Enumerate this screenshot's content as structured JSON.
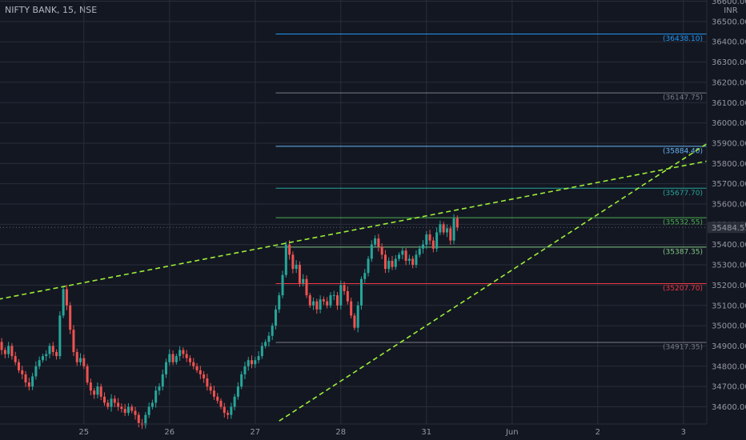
{
  "header": {
    "title": "NIFTY BANK, 15, NSE"
  },
  "axis": {
    "currency": "INR"
  },
  "colors": {
    "background": "#131722",
    "grid": "#2a2e39",
    "up": "#26a69a",
    "down": "#ef5350",
    "trendline": "#9dee38",
    "axis_text": "#9598a1"
  },
  "chart_data": {
    "type": "candlestick",
    "title": "NIFTY BANK, 15, NSE",
    "ylabel": "INR",
    "ylim": [
      34490,
      36650
    ],
    "y_ticks": [
      34600,
      34700,
      34800,
      34900,
      35000,
      35100,
      35200,
      35300,
      35400,
      35500,
      35600,
      35700,
      35800,
      35900,
      36000,
      36100,
      36200,
      36300,
      36400,
      36500,
      36600
    ],
    "y_tick_labels": [
      "34600.00",
      "34700.00",
      "34800.00",
      "34900.00",
      "35000.00",
      "35100.00",
      "35200.00",
      "35300.00",
      "35400.00",
      "35500.00",
      "35600.00",
      "35700.00",
      "35800.00",
      "35900.00",
      "36000.00",
      "36100.00",
      "36200.00",
      "36300.00",
      "36400.00",
      "36500.00",
      "36600.00"
    ],
    "x_ticks": [
      {
        "bar": 25,
        "label": "25"
      },
      {
        "bar": 50,
        "label": "26"
      },
      {
        "bar": 75,
        "label": "27"
      },
      {
        "bar": 100,
        "label": "28"
      },
      {
        "bar": 125,
        "label": "31"
      },
      {
        "bar": 150,
        "label": "Jun"
      },
      {
        "bar": 175,
        "label": "2"
      },
      {
        "bar": 200,
        "label": "3"
      }
    ],
    "last_price": 35484.55,
    "last_price_label": "35484.55",
    "levels": [
      {
        "value": 36438.1,
        "label": "(36438.10)",
        "color": "#2196f3",
        "start_bar": 81
      },
      {
        "value": 36147.75,
        "label": "(36147.75)",
        "color": "#787b86",
        "start_bar": 81
      },
      {
        "value": 35884.4,
        "label": "(35884.40)",
        "color": "#64b5f6",
        "start_bar": 81
      },
      {
        "value": 35677.7,
        "label": "(35677.70)",
        "color": "#26a69a",
        "start_bar": 81
      },
      {
        "value": 35532.55,
        "label": "(35532.55)",
        "color": "#4caf50",
        "start_bar": 81
      },
      {
        "value": 35387.35,
        "label": "(35387.35)",
        "color": "#81c784",
        "start_bar": 81
      },
      {
        "value": 35207.7,
        "label": "(35207.70)",
        "color": "#f23645",
        "start_bar": 81
      },
      {
        "value": 34917.35,
        "label": "(34917.35)",
        "color": "#787b86",
        "start_bar": 81
      }
    ],
    "trendlines": [
      {
        "name": "",
        "from": {
          "bar": 0,
          "value": 35130
        },
        "to": {
          "bar": 208,
          "value": 35815
        }
      },
      {
        "name": "",
        "from": {
          "bar": 82,
          "value": 34530
        },
        "to": {
          "bar": 208,
          "value": 35910
        }
      }
    ],
    "closes": [
      34920,
      34880,
      34860,
      34900,
      34850,
      34820,
      34780,
      34760,
      34720,
      34700,
      34750,
      34800,
      34830,
      34850,
      34860,
      34900,
      34870,
      34850,
      35050,
      35180,
      35100,
      34980,
      34870,
      34820,
      34840,
      34800,
      34720,
      34680,
      34660,
      34700,
      34650,
      34620,
      34600,
      34640,
      34620,
      34600,
      34590,
      34570,
      34600,
      34580,
      34560,
      34520,
      34510,
      34560,
      34600,
      34620,
      34680,
      34700,
      34760,
      34820,
      34860,
      34820,
      34850,
      34880,
      34860,
      34840,
      34820,
      34800,
      34780,
      34760,
      34740,
      34700,
      34680,
      34650,
      34630,
      34600,
      34570,
      34560,
      34600,
      34650,
      34700,
      34760,
      34800,
      34830,
      34810,
      34830,
      34850,
      34900,
      34920,
      34950,
      35000,
      35080,
      35150,
      35250,
      35400,
      35350,
      35280,
      35300,
      35210,
      35230,
      35150,
      35100,
      35120,
      35080,
      35130,
      35120,
      35100,
      35150,
      35150,
      35100,
      35200,
      35170,
      35120,
      35050,
      34990,
      35100,
      35230,
      35260,
      35330,
      35400,
      35430,
      35390,
      35350,
      35280,
      35320,
      35290,
      35330,
      35350,
      35370,
      35320,
      35330,
      35300,
      35350,
      35380,
      35400,
      35450,
      35420,
      35380,
      35460,
      35500,
      35460,
      35480,
      35420,
      35530,
      35484.55
    ],
    "date_labels_font_note": ""
  }
}
